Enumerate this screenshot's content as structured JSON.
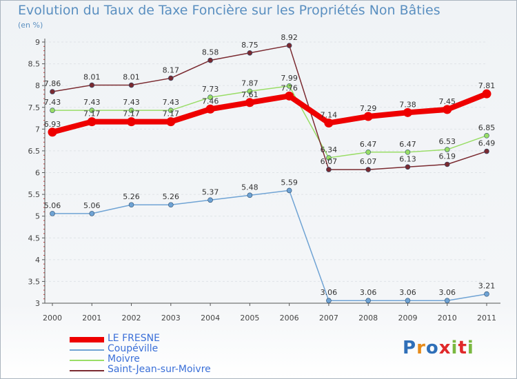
{
  "header": {
    "title": "Evolution du Taux de Taxe Foncière sur les Propriétés Non Bâties",
    "unit": "(en %)"
  },
  "logo": {
    "text": "Proxiti"
  },
  "chart_data": {
    "type": "line",
    "title": "Evolution du Taux de Taxe Foncière sur les Propriétés Non Bâties",
    "ylabel": "(en %)",
    "xlabel": "",
    "x": [
      "2000",
      "2001",
      "2002",
      "2003",
      "2004",
      "2005",
      "2006",
      "2007",
      "2008",
      "2009",
      "2010",
      "2011"
    ],
    "ylim": [
      3,
      9
    ],
    "yticks": [
      "3",
      "3.5",
      "4",
      "4.5",
      "5",
      "5.5",
      "6",
      "6.5",
      "7",
      "7.5",
      "8",
      "8.5",
      "9"
    ],
    "grid": "horizontal",
    "legend_position": "bottom-left",
    "series": [
      {
        "name": "LE FRESNE",
        "color": "#ee0000",
        "values": [
          6.93,
          7.17,
          7.17,
          7.17,
          7.46,
          7.61,
          7.76,
          7.14,
          7.29,
          7.38,
          7.45,
          7.81
        ],
        "labels": [
          "6.93",
          "7.17",
          "7.17",
          "7.17",
          "7.46",
          "7.61",
          "7.76",
          "7.14",
          "7.29",
          "7.38",
          "7.45",
          "7.81"
        ]
      },
      {
        "name": "Coupéville",
        "color": "#6fa3d4",
        "values": [
          5.06,
          5.06,
          5.26,
          5.26,
          5.37,
          5.48,
          5.59,
          3.06,
          3.06,
          3.06,
          3.06,
          3.21
        ],
        "labels": [
          "5.06",
          "5.06",
          "5.26",
          "5.26",
          "5.37",
          "5.48",
          "5.59",
          "3.06",
          "3.06",
          "3.06",
          "3.06",
          "3.21"
        ]
      },
      {
        "name": "Moivre",
        "color": "#99dd66",
        "values": [
          7.43,
          7.43,
          7.43,
          7.43,
          7.73,
          7.87,
          7.99,
          6.34,
          6.47,
          6.47,
          6.53,
          6.85
        ],
        "labels": [
          "7.43",
          "7.43",
          "7.43",
          "7.43",
          "7.73",
          "7.87",
          "7.99",
          "6.34",
          "6.47",
          "6.47",
          "6.53",
          "6.85"
        ]
      },
      {
        "name": "Saint-Jean-sur-Moivre",
        "color": "#7a2a30",
        "values": [
          7.86,
          8.01,
          8.01,
          8.17,
          8.58,
          8.75,
          8.92,
          6.07,
          6.07,
          6.13,
          6.19,
          6.49
        ],
        "labels": [
          "7.86",
          "8.01",
          "8.01",
          "8.17",
          "8.58",
          "8.75",
          "8.92",
          "6.07",
          "6.07",
          "6.13",
          "6.19",
          "6.49"
        ]
      }
    ]
  }
}
